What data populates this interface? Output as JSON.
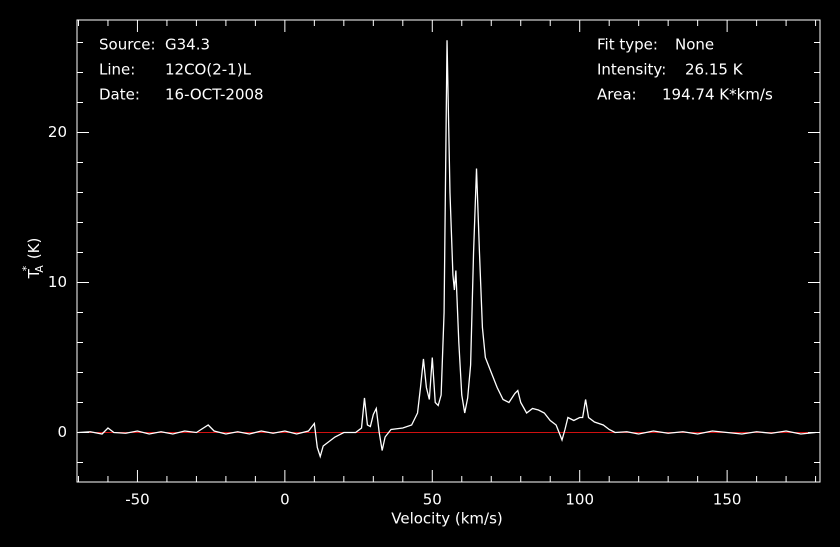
{
  "chart_data": {
    "type": "line",
    "xlabel": "Velocity (km/s)",
    "ylabel": {
      "main": "T",
      "sub": "A",
      "sup": "*",
      "unit": "(K)"
    },
    "info_left": [
      {
        "label": "Source:",
        "value": "G34.3"
      },
      {
        "label": "Line:",
        "value": "12CO(2-1)L"
      },
      {
        "label": "Date:",
        "value": "16-OCT-2008"
      }
    ],
    "info_right": [
      {
        "label": "Fit type:",
        "value": "None"
      },
      {
        "label": "Intensity:",
        "value": "26.15 K"
      },
      {
        "label": "Area:",
        "value": "194.74 K*km/s"
      }
    ],
    "xlim": [
      -70.5,
      181.5
    ],
    "ylim": [
      -3.3,
      27.5
    ],
    "xticks": [
      -50,
      0,
      50,
      100,
      150
    ],
    "yticks": [
      0,
      10,
      20
    ],
    "xminorticks": [
      -70,
      -60,
      -40,
      -30,
      -20,
      -10,
      10,
      20,
      30,
      40,
      60,
      70,
      80,
      90,
      110,
      120,
      130,
      140,
      160,
      170,
      180
    ],
    "yminorticks": [
      -2,
      2,
      4,
      6,
      8,
      12,
      14,
      16,
      18,
      22,
      24,
      26
    ],
    "baseline": 0,
    "baseline_color": "#d01010",
    "x": [
      -70,
      -66,
      -62,
      -60,
      -58,
      -54,
      -50,
      -46,
      -42,
      -38,
      -34,
      -30,
      -26,
      -24,
      -20,
      -16,
      -12,
      -8,
      -4,
      0,
      4,
      8,
      10,
      11,
      12,
      13,
      15,
      17,
      20,
      24,
      26,
      27,
      28,
      29,
      30,
      31,
      32,
      33,
      34,
      36,
      40,
      43,
      45,
      46,
      47,
      48,
      49,
      50,
      51,
      52,
      53,
      54,
      55,
      56,
      57,
      57.5,
      58,
      59,
      60,
      61,
      62,
      63,
      64,
      65,
      66,
      67,
      68,
      70,
      72,
      74,
      76,
      78,
      79,
      80,
      82,
      84,
      86,
      88,
      90,
      92,
      93,
      94,
      95,
      96,
      98,
      100,
      101,
      102,
      103,
      105,
      108,
      110,
      112,
      116,
      120,
      125,
      130,
      135,
      140,
      145,
      150,
      155,
      160,
      165,
      170,
      175,
      180
    ],
    "series": [
      {
        "color": "#ffffff",
        "values": [
          0.0,
          0.05,
          -0.1,
          0.3,
          0.0,
          -0.05,
          0.1,
          -0.1,
          0.05,
          -0.1,
          0.1,
          0.0,
          0.5,
          0.1,
          -0.1,
          0.05,
          -0.1,
          0.1,
          -0.05,
          0.1,
          -0.1,
          0.1,
          0.6,
          -1.0,
          -1.6,
          -0.9,
          -0.6,
          -0.3,
          0.0,
          0.0,
          0.3,
          2.3,
          0.5,
          0.4,
          1.2,
          1.6,
          0.0,
          -1.2,
          -0.3,
          0.2,
          0.3,
          0.5,
          1.3,
          3.0,
          4.9,
          3.0,
          2.2,
          5.0,
          2.0,
          1.8,
          2.5,
          8.0,
          26.15,
          16.0,
          10.5,
          9.5,
          10.8,
          6.0,
          2.5,
          1.3,
          2.3,
          4.5,
          12.0,
          17.6,
          12.0,
          7.0,
          5.0,
          4.0,
          3.0,
          2.2,
          2.0,
          2.6,
          2.8,
          2.0,
          1.3,
          1.6,
          1.5,
          1.3,
          0.8,
          0.5,
          0.0,
          -0.5,
          0.2,
          1.0,
          0.8,
          1.0,
          1.0,
          2.2,
          1.0,
          0.7,
          0.5,
          0.2,
          0.0,
          0.05,
          -0.1,
          0.1,
          -0.05,
          0.05,
          -0.1,
          0.1,
          0.0,
          -0.1,
          0.05,
          -0.05,
          0.1,
          -0.1,
          0.0
        ]
      }
    ],
    "frame_color": "#ffffff"
  }
}
